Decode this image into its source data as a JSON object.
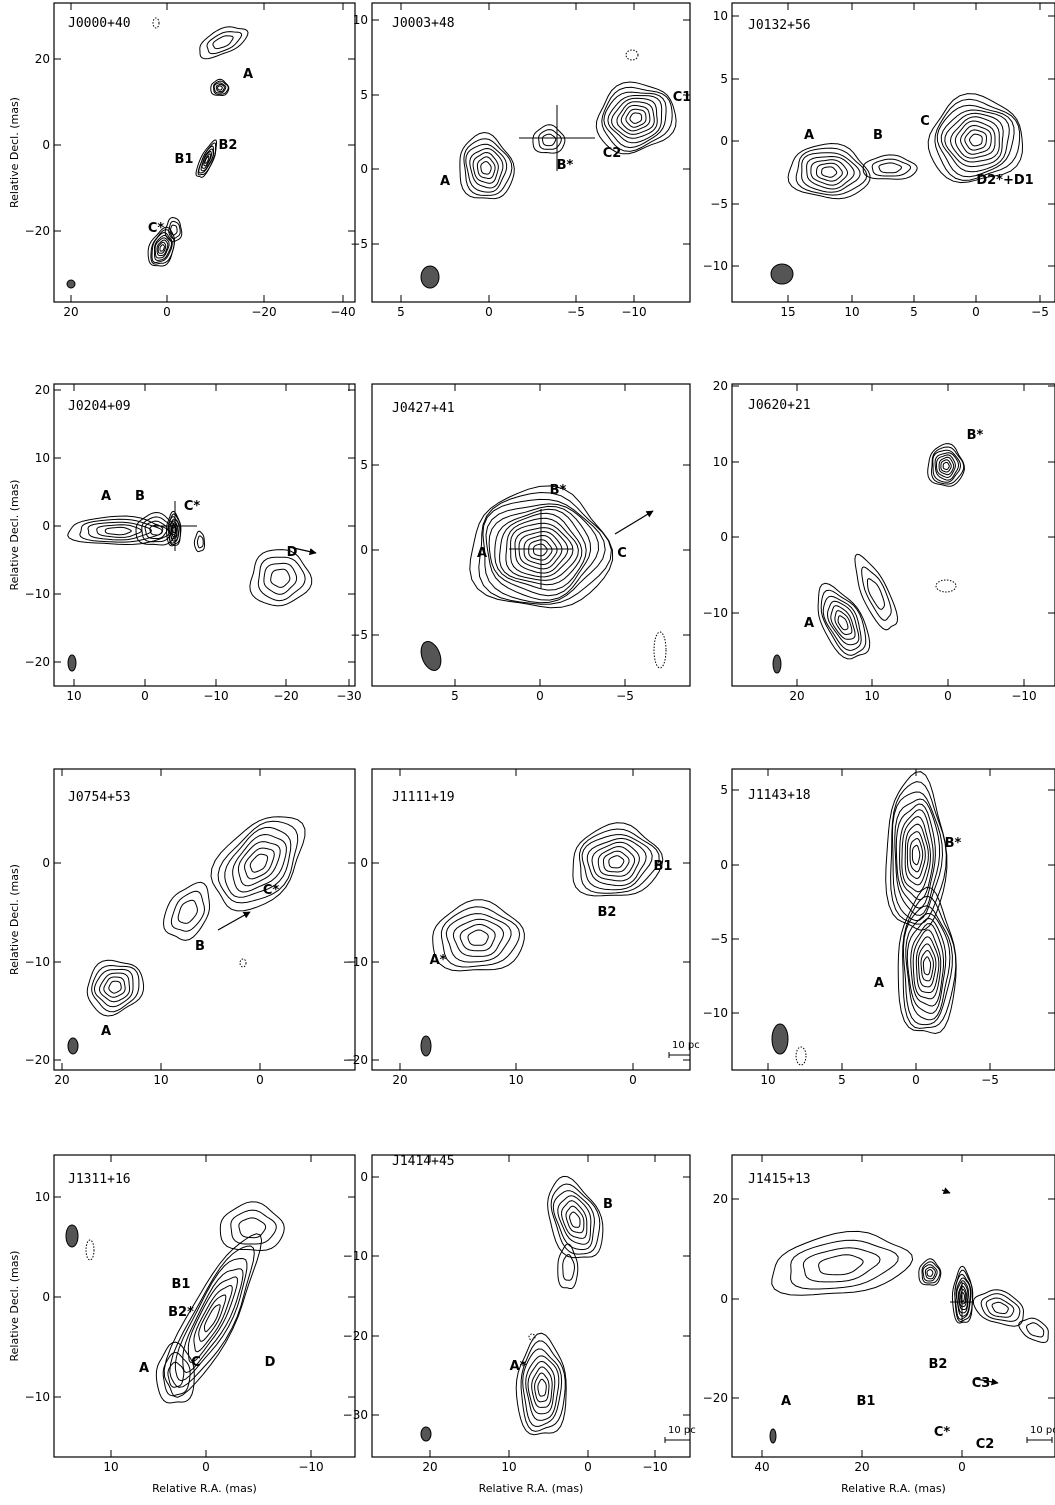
{
  "figure": {
    "xlabel": "Relative R.A. (mas)",
    "ylabel": "Relative Decl. (mas)",
    "panels": [
      {
        "id": "J0000+40",
        "xticks": [
          "20",
          "0",
          "−20",
          "−40"
        ],
        "yticks": [
          "20",
          "0",
          "−20"
        ],
        "labels": [
          {
            "t": "A"
          },
          {
            "t": "B1"
          },
          {
            "t": "B2"
          },
          {
            "t": "C*"
          }
        ]
      },
      {
        "id": "J0003+48",
        "xticks": [
          "5",
          "0",
          "−5",
          "−10"
        ],
        "yticks": [
          "10",
          "5",
          "0",
          "−5"
        ],
        "labels": [
          {
            "t": "A"
          },
          {
            "t": "B*"
          },
          {
            "t": "C2"
          },
          {
            "t": "C1"
          }
        ]
      },
      {
        "id": "J0132+56",
        "xticks": [
          "15",
          "10",
          "5",
          "0",
          "−5"
        ],
        "yticks": [
          "10",
          "5",
          "0",
          "−5",
          "−10"
        ],
        "labels": [
          {
            "t": "A"
          },
          {
            "t": "B"
          },
          {
            "t": "C"
          },
          {
            "t": "D2*+D1"
          }
        ]
      },
      {
        "id": "J0204+09",
        "xticks": [
          "10",
          "0",
          "−10",
          "−20",
          "−30"
        ],
        "yticks": [
          "20",
          "10",
          "0",
          "−10",
          "−20"
        ],
        "labels": [
          {
            "t": "A"
          },
          {
            "t": "B"
          },
          {
            "t": "C*"
          },
          {
            "t": "D"
          }
        ]
      },
      {
        "id": "J0427+41",
        "xticks": [
          "5",
          "0",
          "−5"
        ],
        "yticks": [
          "5",
          "0",
          "−5"
        ],
        "labels": [
          {
            "t": "B*"
          },
          {
            "t": "A"
          },
          {
            "t": "C"
          }
        ]
      },
      {
        "id": "J0620+21",
        "xticks": [
          "20",
          "10",
          "0",
          "−10"
        ],
        "yticks": [
          "20",
          "10",
          "0",
          "−10"
        ],
        "labels": [
          {
            "t": "B*"
          },
          {
            "t": "A"
          }
        ]
      },
      {
        "id": "J0754+53",
        "xticks": [
          "20",
          "10",
          "0"
        ],
        "yticks": [
          "0",
          "−10",
          "−20"
        ],
        "labels": [
          {
            "t": "C*"
          },
          {
            "t": "B"
          },
          {
            "t": "A"
          }
        ]
      },
      {
        "id": "J1111+19",
        "xticks": [
          "20",
          "10",
          "0"
        ],
        "yticks": [
          "0",
          "−10",
          "−20"
        ],
        "labels": [
          {
            "t": "B1"
          },
          {
            "t": "B2"
          },
          {
            "t": "A*"
          }
        ],
        "scalebar": "10 pc"
      },
      {
        "id": "J1143+18",
        "xticks": [
          "10",
          "5",
          "0",
          "−5"
        ],
        "yticks": [
          "5",
          "0",
          "−5",
          "−10"
        ],
        "labels": [
          {
            "t": "B*"
          },
          {
            "t": "A"
          }
        ]
      },
      {
        "id": "J1311+16",
        "xticks": [
          "10",
          "0",
          "−10"
        ],
        "yticks": [
          "10",
          "0",
          "−10"
        ],
        "labels": [
          {
            "t": "C"
          },
          {
            "t": "D"
          },
          {
            "t": "B1"
          },
          {
            "t": "B2*"
          },
          {
            "t": "A"
          }
        ]
      },
      {
        "id": "J1414+45",
        "xticks": [
          "20",
          "10",
          "0",
          "−10"
        ],
        "yticks": [
          "0",
          "−10",
          "−20",
          "−30"
        ],
        "labels": [
          {
            "t": "B"
          },
          {
            "t": "A*"
          }
        ],
        "scalebar": "10 pc"
      },
      {
        "id": "J1415+13",
        "xticks": [
          "40",
          "20",
          "0"
        ],
        "yticks": [
          "20",
          "0",
          "−20"
        ],
        "labels": [
          {
            "t": "B2"
          },
          {
            "t": "C3"
          },
          {
            "t": "A"
          },
          {
            "t": "B1"
          },
          {
            "t": "C*"
          },
          {
            "t": "C2"
          }
        ],
        "scalebar": "10 pc"
      }
    ]
  }
}
